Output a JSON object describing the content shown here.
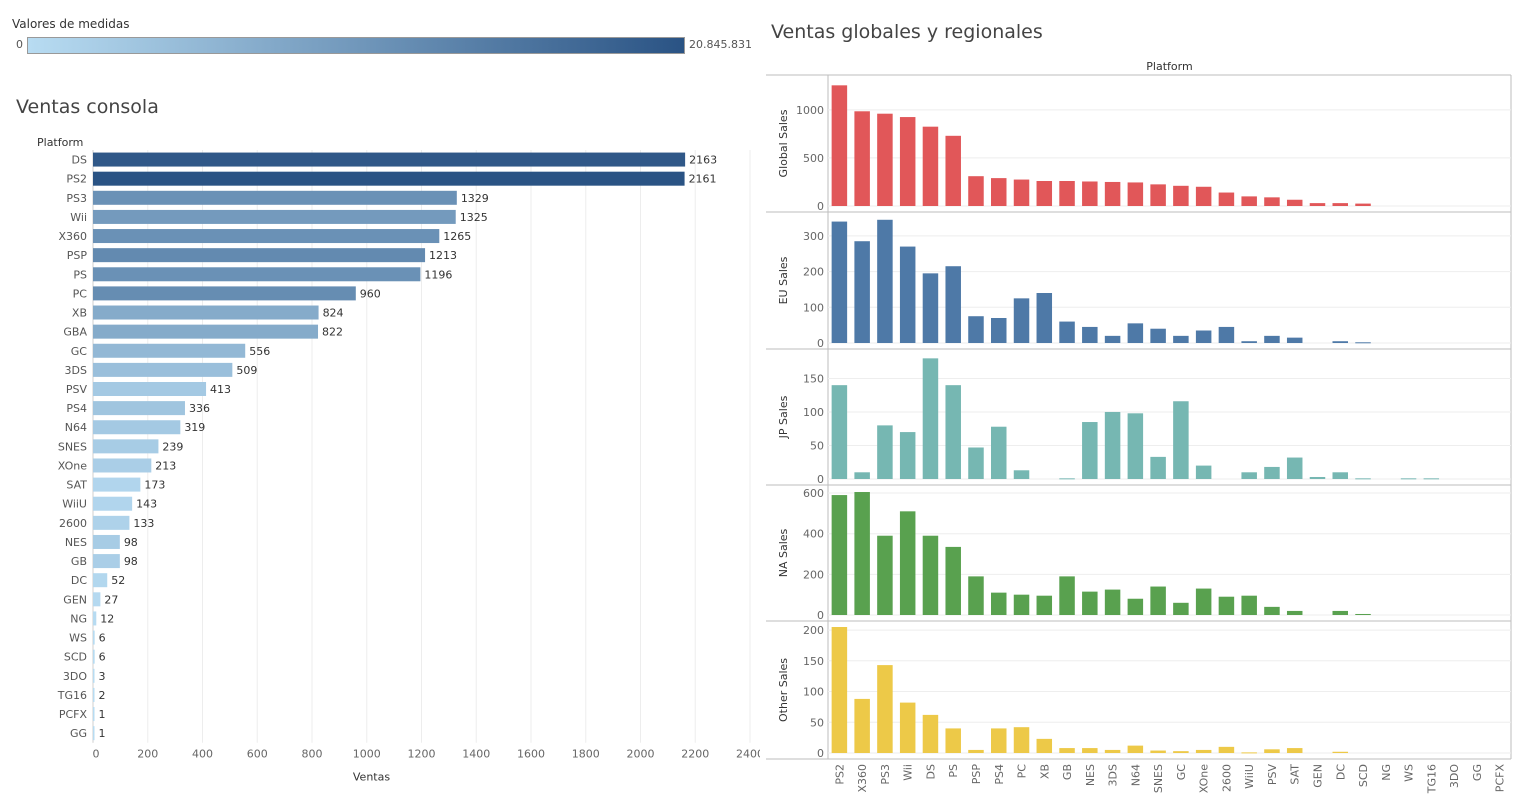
{
  "legend": {
    "title": "Valores de medidas",
    "min_label": "0",
    "max_label": "20.845.831",
    "color_low": "#b8dcf2",
    "color_high": "#2a5384"
  },
  "chart_data": [
    {
      "type": "bar",
      "orientation": "horizontal",
      "title": "Ventas consola",
      "category_axis_title": "Platform",
      "xlabel": "Ventas",
      "xlim": [
        0,
        2400
      ],
      "xticks": [
        "0",
        "200",
        "400",
        "600",
        "800",
        "1000",
        "1200",
        "1400",
        "1600",
        "1800",
        "2000",
        "2200",
        "2400"
      ],
      "grid": true,
      "categories": [
        "DS",
        "PS2",
        "PS3",
        "Wii",
        "X360",
        "PSP",
        "PS",
        "PC",
        "XB",
        "GBA",
        "GC",
        "3DS",
        "PSV",
        "PS4",
        "N64",
        "SNES",
        "XOne",
        "SAT",
        "WiiU",
        "2600",
        "NES",
        "GB",
        "DC",
        "GEN",
        "NG",
        "WS",
        "SCD",
        "3DO",
        "TG16",
        "PCFX",
        "GG"
      ],
      "values": [
        2163,
        2161,
        1329,
        1325,
        1265,
        1213,
        1196,
        960,
        824,
        822,
        556,
        509,
        413,
        336,
        319,
        239,
        213,
        173,
        143,
        133,
        98,
        98,
        52,
        27,
        12,
        6,
        6,
        3,
        2,
        1,
        1
      ],
      "color_metric": [
        0.96,
        1.0,
        0.55,
        0.48,
        0.55,
        0.6,
        0.55,
        0.58,
        0.36,
        0.36,
        0.26,
        0.21,
        0.14,
        0.17,
        0.14,
        0.12,
        0.1,
        0.05,
        0.05,
        0.07,
        0.12,
        0.1,
        0.04,
        0.02,
        0.01,
        0.01,
        0.01,
        0.0,
        0.0,
        0.0,
        0.0
      ]
    },
    {
      "type": "bar",
      "title": "Ventas globales y regionales",
      "column_header": "Platform",
      "categories": [
        "PS2",
        "X360",
        "PS3",
        "Wii",
        "DS",
        "PS",
        "PSP",
        "PS4",
        "PC",
        "XB",
        "GB",
        "NES",
        "3DS",
        "N64",
        "SNES",
        "GC",
        "XOne",
        "2600",
        "WiiU",
        "PSV",
        "SAT",
        "GEN",
        "DC",
        "SCD",
        "NG",
        "WS",
        "TG16",
        "3DO",
        "GG",
        "PCFX"
      ],
      "grid": true,
      "series": [
        {
          "name": "Global Sales",
          "color": "#e15759",
          "ylim": [
            0,
            1300
          ],
          "yticks": [
            "0",
            "500",
            "1000"
          ],
          "values": [
            1255,
            985,
            960,
            925,
            825,
            730,
            310,
            290,
            275,
            260,
            260,
            255,
            250,
            245,
            225,
            210,
            200,
            140,
            100,
            90,
            65,
            30,
            30,
            25,
            0,
            0,
            0,
            0,
            0,
            0
          ]
        },
        {
          "name": "EU Sales",
          "color": "#4e79a7",
          "ylim": [
            0,
            350
          ],
          "yticks": [
            "0",
            "100",
            "200",
            "300"
          ],
          "values": [
            340,
            285,
            345,
            270,
            195,
            215,
            75,
            70,
            125,
            140,
            60,
            45,
            20,
            55,
            40,
            20,
            35,
            45,
            5,
            20,
            15,
            0,
            5,
            2,
            0,
            0,
            0,
            0,
            0,
            0
          ]
        },
        {
          "name": "JP Sales",
          "color": "#76b7b2",
          "ylim": [
            0,
            185
          ],
          "yticks": [
            "0",
            "50",
            "100",
            "150"
          ],
          "values": [
            140,
            10,
            80,
            70,
            180,
            140,
            47,
            78,
            13,
            0,
            1,
            85,
            100,
            98,
            33,
            116,
            20,
            0,
            10,
            18,
            32,
            3,
            10,
            1,
            0,
            1,
            1,
            0,
            0,
            0
          ]
        },
        {
          "name": "NA Sales",
          "color": "#59a14f",
          "ylim": [
            0,
            610
          ],
          "yticks": [
            "0",
            "200",
            "400",
            "600"
          ],
          "values": [
            590,
            605,
            390,
            510,
            390,
            335,
            190,
            110,
            100,
            95,
            190,
            115,
            125,
            80,
            140,
            60,
            130,
            90,
            95,
            40,
            20,
            0,
            20,
            5,
            0,
            0,
            0,
            0,
            0,
            0
          ]
        },
        {
          "name": "Other Sales",
          "color": "#edc948",
          "ylim": [
            0,
            205
          ],
          "yticks": [
            "0",
            "50",
            "100",
            "150",
            "200"
          ],
          "values": [
            205,
            88,
            143,
            82,
            62,
            40,
            5,
            40,
            42,
            23,
            8,
            8,
            5,
            12,
            4,
            3,
            5,
            10,
            1,
            6,
            8,
            0,
            2,
            0,
            0,
            0,
            0,
            0,
            0,
            0
          ]
        }
      ]
    }
  ]
}
